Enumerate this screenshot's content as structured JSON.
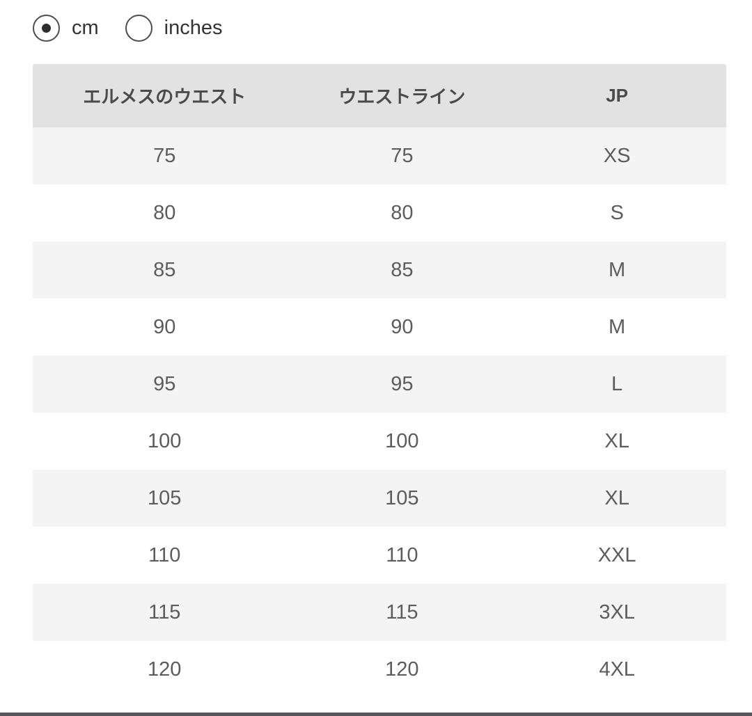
{
  "unit_selector": {
    "options": [
      {
        "label": "cm",
        "selected": true
      },
      {
        "label": "inches",
        "selected": false
      }
    ]
  },
  "table": {
    "columns": [
      "エルメスのウエスト",
      "ウエストライン",
      "JP"
    ],
    "rows": [
      [
        "75",
        "75",
        "XS"
      ],
      [
        "80",
        "80",
        "S"
      ],
      [
        "85",
        "85",
        "M"
      ],
      [
        "90",
        "90",
        "M"
      ],
      [
        "95",
        "95",
        "L"
      ],
      [
        "100",
        "100",
        "XL"
      ],
      [
        "105",
        "105",
        "XL"
      ],
      [
        "110",
        "110",
        "XXL"
      ],
      [
        "115",
        "115",
        "3XL"
      ],
      [
        "120",
        "120",
        "4XL"
      ]
    ]
  },
  "colors": {
    "header_bg": "#e2e2e2",
    "header_text": "#4a4a4a",
    "row_alt_bg": "#f4f4f5",
    "row_bg": "#ffffff",
    "cell_text": "#5c5c5c",
    "radio_border": "#4d4d4d",
    "radio_dot": "#2f2f2f",
    "radio_label": "#333333",
    "bottom_bar": "#58585a"
  }
}
